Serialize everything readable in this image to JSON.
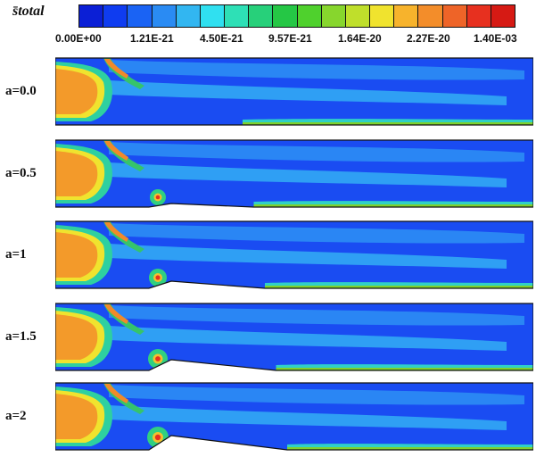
{
  "legend": {
    "title": "s̄total",
    "colors": [
      "#0b1fd6",
      "#0f3cf0",
      "#1a63f4",
      "#2a8bf3",
      "#32b6f1",
      "#30e0f0",
      "#2ee0b6",
      "#27d07a",
      "#25c745",
      "#4fd12d",
      "#87d62d",
      "#bfdf2b",
      "#f0e32e",
      "#f7b32c",
      "#f38d2a",
      "#ee6428",
      "#e7301f",
      "#d61a14"
    ],
    "tick_labels": [
      "0.00E+00",
      "1.21E-21",
      "4.50E-21",
      "9.57E-21",
      "1.64E-20",
      "2.27E-20",
      "1.40E-03"
    ]
  },
  "cases": [
    {
      "label": "a=0.0",
      "bump_height": 0
    },
    {
      "label": "a=0.5",
      "bump_height": 0.5
    },
    {
      "label": "a=1",
      "bump_height": 1
    },
    {
      "label": "a=1.5",
      "bump_height": 1.5
    },
    {
      "label": "a=2",
      "bump_height": 2
    }
  ]
}
